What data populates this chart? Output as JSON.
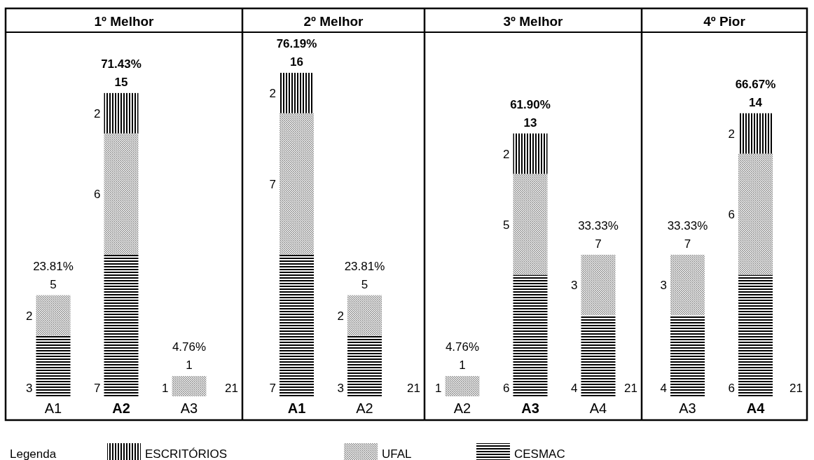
{
  "chart_data": [
    {
      "type": "bar",
      "title": "1º Melhor",
      "stacked": true,
      "data_labels": true,
      "legend": "bottom",
      "legend_title": "Legenda",
      "categories": [
        "A1",
        "A2",
        "A3"
      ],
      "series": [
        {
          "name": "CESMAC",
          "color": "#000000",
          "values": [
            3,
            7,
            null
          ]
        },
        {
          "name": "UFAL",
          "color": "#808080",
          "values": [
            2,
            6,
            1
          ]
        },
        {
          "name": "ESCRITÓRIOS",
          "color": "#000000",
          "values": [
            null,
            2,
            null
          ]
        }
      ],
      "totals": [
        "5",
        "15",
        "1"
      ],
      "annotations": [
        {
          "text": "23.81%",
          "x": "A1",
          "y": 5
        },
        {
          "text": "71.43%",
          "x": "A2",
          "y": 15
        },
        {
          "text": "4.76%",
          "x": "A3",
          "y": 1
        },
        "21"
      ]
    },
    {
      "type": "bar",
      "title": "2º Melhor",
      "stacked": true,
      "data_labels": true,
      "categories": [
        "A1",
        "A2"
      ],
      "series": [
        {
          "color": "#000000",
          "values": [
            7,
            3
          ]
        },
        {
          "color": "#808080",
          "values": [
            7,
            2
          ]
        },
        {
          "color": "#000000",
          "values": [
            2,
            null
          ]
        }
      ],
      "totals": [
        "16",
        "5"
      ],
      "annotations": [
        {
          "text": "76.19%",
          "x": "A1",
          "y": 16
        },
        {
          "text": "23.81%",
          "x": "A2",
          "y": 5
        },
        "21"
      ]
    },
    {
      "type": "bar",
      "title": "3º Melhor",
      "stacked": true,
      "data_labels": true,
      "categories": [
        "A2",
        "A3",
        "A4"
      ],
      "series": [
        {
          "color": "#000000",
          "values": [
            null,
            6,
            4
          ]
        },
        {
          "color": "#808080",
          "values": [
            1,
            5,
            3
          ]
        },
        {
          "color": "#000000",
          "values": [
            null,
            2,
            null
          ]
        }
      ],
      "totals": [
        "1",
        "13",
        "7"
      ],
      "annotations": [
        {
          "text": "4.76%",
          "x": "A2",
          "y": 1
        },
        {
          "text": "61.90%",
          "x": "A3",
          "y": 13
        },
        {
          "text": "33.33%",
          "x": "A4",
          "y": 7
        },
        "21"
      ]
    },
    {
      "type": "bar",
      "title": "4º Pior",
      "stacked": true,
      "data_labels": true,
      "categories": [
        "A3",
        "A4"
      ],
      "series": [
        {
          "color": "#000000",
          "values": [
            4,
            6
          ]
        },
        {
          "color": "#808080",
          "values": [
            3,
            6
          ]
        },
        {
          "color": "#000000",
          "values": [
            null,
            2
          ]
        }
      ],
      "totals": [
        "7",
        "14"
      ],
      "annotations": [
        {
          "text": "33.33%",
          "x": "A3",
          "y": 7
        },
        {
          "text": "66.67%",
          "x": "A4",
          "y": 14
        },
        "21"
      ]
    }
  ]
}
